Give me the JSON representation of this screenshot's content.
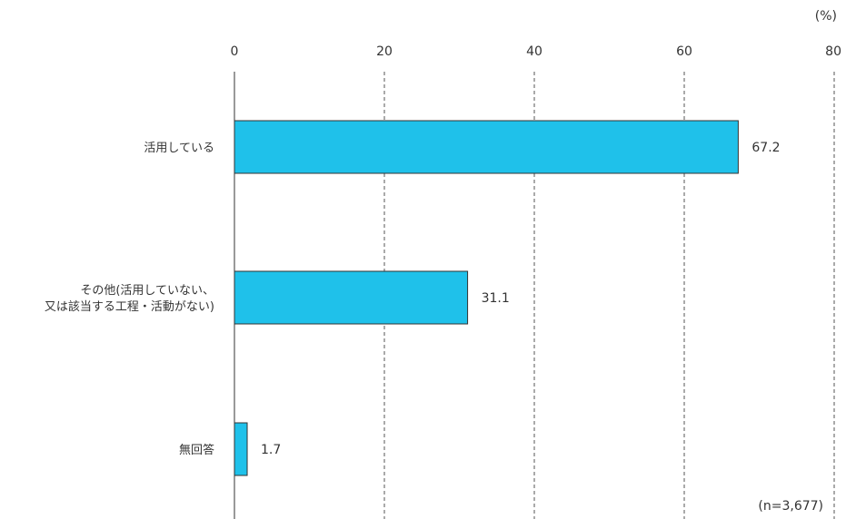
{
  "chart_data": {
    "type": "bar",
    "orientation": "horizontal",
    "unit": "(%)",
    "note": "(n=3,677)",
    "categories": [
      [
        "活用している"
      ],
      [
        "その他(活用していない、",
        "又は該当する工程・活動がない)"
      ],
      [
        "無回答"
      ]
    ],
    "values": [
      67.2,
      31.1,
      1.7
    ],
    "value_labels": [
      "67.2",
      "31.1",
      "1.7"
    ],
    "x_ticks": [
      0,
      20,
      40,
      60,
      80
    ],
    "xlim": [
      0,
      80
    ],
    "grid": "vertical-dashed",
    "bar_color": "#1FC1EA"
  }
}
